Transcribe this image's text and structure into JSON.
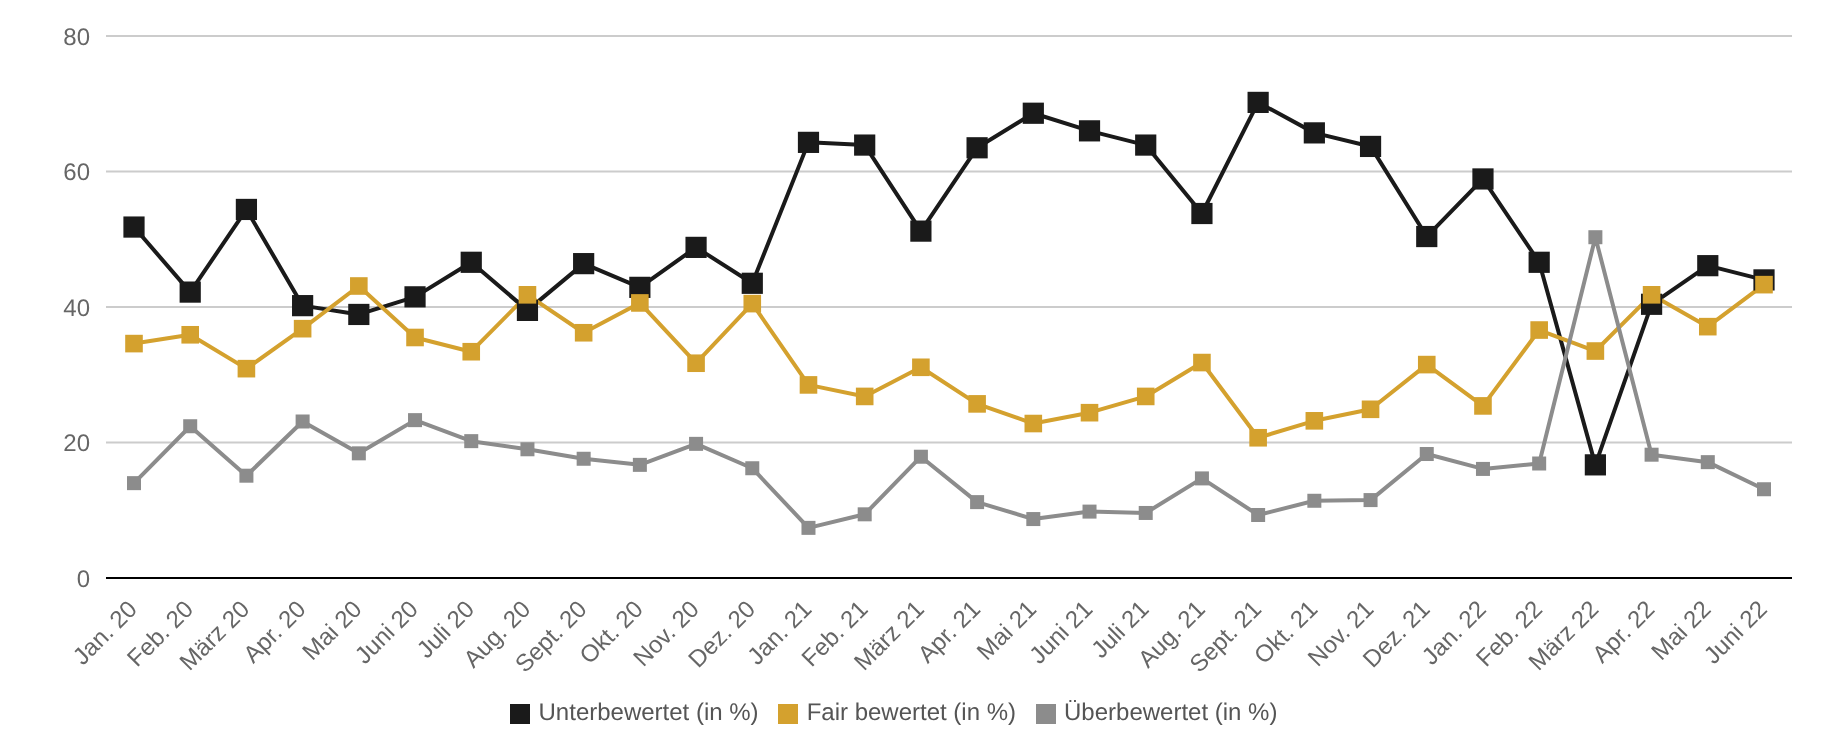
{
  "chart_data": {
    "type": "line",
    "categories": [
      "Jan. 20",
      "Feb. 20",
      "März 20",
      "Apr. 20",
      "Mai 20",
      "Juni 20",
      "Juli 20",
      "Aug. 20",
      "Sept. 20",
      "Okt. 20",
      "Nov. 20",
      "Dez. 20",
      "Jan. 21",
      "Feb. 21",
      "März 21",
      "Apr. 21",
      "Mai 21",
      "Juni 21",
      "Juli 21",
      "Aug. 21",
      "Sept. 21",
      "Okt. 21",
      "Nov. 21",
      "Dez. 21",
      "Jan. 22",
      "Feb. 22",
      "März 22",
      "Apr. 22",
      "Mai 22",
      "Juni 22"
    ],
    "series": [
      {
        "name": "Unterbewertet (in %)",
        "color": "#1a1a1a",
        "values": [
          51.8,
          42.2,
          54.4,
          40.2,
          38.9,
          41.5,
          46.6,
          39.5,
          46.4,
          42.9,
          48.8,
          43.5,
          64.3,
          63.9,
          51.2,
          63.5,
          68.6,
          66,
          63.9,
          53.8,
          70.2,
          65.7,
          63.7,
          50.4,
          58.9,
          46.6,
          16.7,
          40.4,
          46.1,
          44
        ]
      },
      {
        "name": "Fair bewertet (in %)",
        "color": "#d4a12e",
        "values": [
          34.6,
          35.9,
          30.9,
          36.8,
          43.1,
          35.5,
          33.4,
          41.8,
          36.2,
          40.6,
          31.7,
          40.5,
          28.5,
          26.8,
          31.1,
          25.7,
          22.8,
          24.4,
          26.8,
          31.8,
          20.7,
          23.2,
          24.9,
          31.5,
          25.4,
          36.6,
          33.5,
          41.8,
          37.1,
          43.3
        ]
      },
      {
        "name": "Überbewertet (in %)",
        "color": "#8c8c8c",
        "values": [
          14,
          22.4,
          15.1,
          23.1,
          18.4,
          23.3,
          20.2,
          19,
          17.6,
          16.7,
          19.8,
          16.2,
          7.4,
          9.4,
          17.9,
          11.2,
          8.7,
          9.8,
          9.6,
          14.7,
          9.3,
          11.4,
          11.5,
          18.3,
          16.1,
          16.9,
          50.3,
          18.2,
          17.1,
          13.1
        ]
      }
    ],
    "ylim": [
      0,
      80
    ],
    "yticks": [
      0,
      20,
      40,
      60,
      80
    ],
    "grid": "y",
    "legend": "bottom",
    "marker": "square",
    "line_style": "solid"
  }
}
